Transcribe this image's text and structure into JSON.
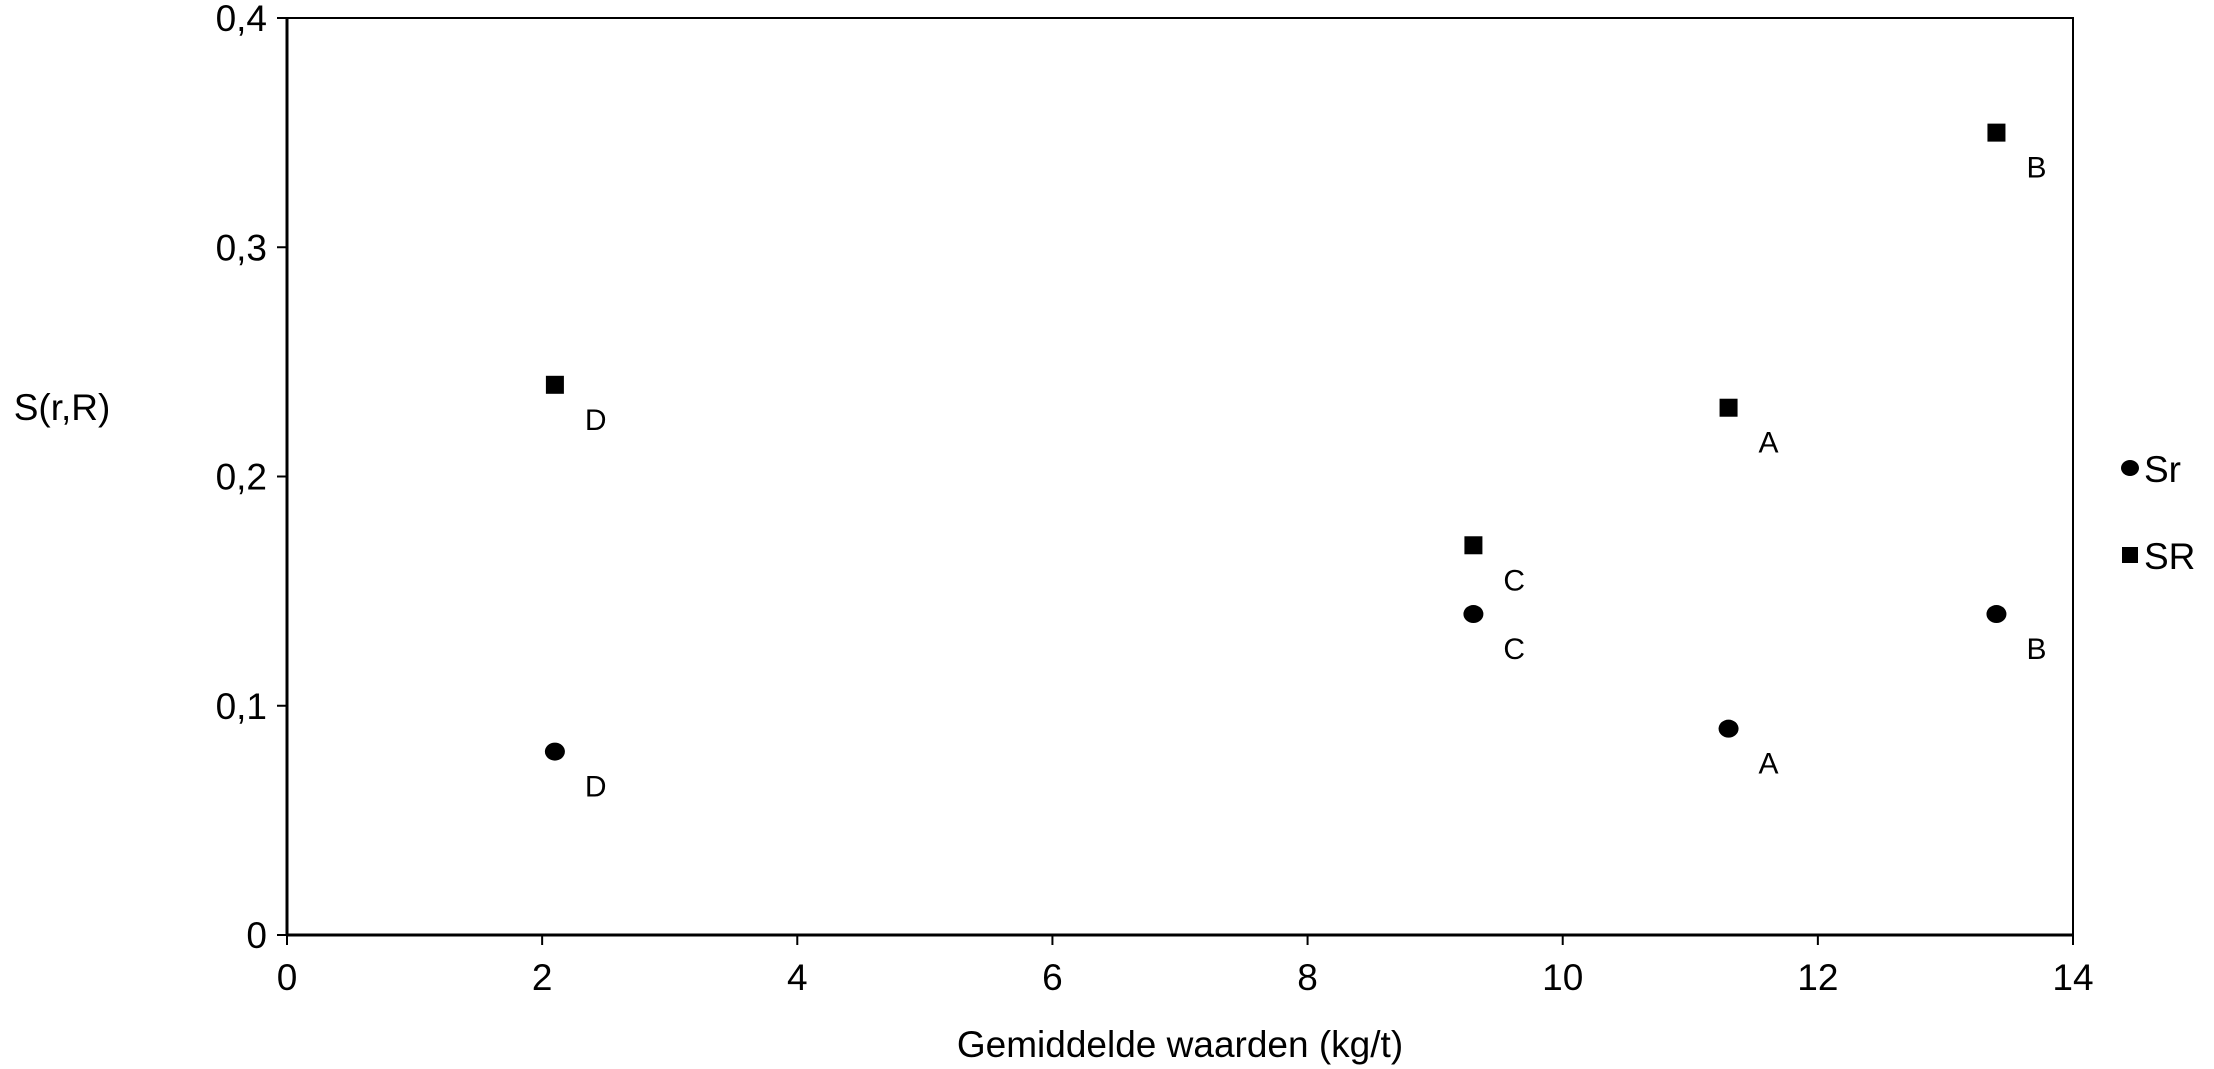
{
  "chart_data": {
    "type": "scatter",
    "title": "",
    "xlabel": "Gemiddelde waarden (kg/t)",
    "ylabel": "S(r,R)",
    "xlim": [
      0,
      14
    ],
    "ylim": [
      0,
      0.4
    ],
    "x_ticks": [
      0,
      2,
      4,
      6,
      8,
      10,
      12,
      14
    ],
    "x_tick_labels": [
      "0",
      "2",
      "4",
      "6",
      "8",
      "10",
      "12",
      "14"
    ],
    "y_ticks": [
      0,
      0.1,
      0.2,
      0.3,
      0.4
    ],
    "y_tick_labels": [
      "0",
      "0,1",
      "0,2",
      "0,3",
      "0,4"
    ],
    "grid": false,
    "legend_position": "right",
    "series": [
      {
        "name": "Sr",
        "marker": "circle",
        "color": "#000000",
        "points": [
          {
            "label": "D",
            "x": 2.1,
            "y": 0.08
          },
          {
            "label": "C",
            "x": 9.3,
            "y": 0.14
          },
          {
            "label": "A",
            "x": 11.3,
            "y": 0.09
          },
          {
            "label": "B",
            "x": 13.4,
            "y": 0.14
          }
        ]
      },
      {
        "name": "SR",
        "marker": "square",
        "color": "#000000",
        "points": [
          {
            "label": "D",
            "x": 2.1,
            "y": 0.24
          },
          {
            "label": "C",
            "x": 9.3,
            "y": 0.17
          },
          {
            "label": "A",
            "x": 11.3,
            "y": 0.23
          },
          {
            "label": "B",
            "x": 13.4,
            "y": 0.35
          }
        ]
      }
    ]
  }
}
